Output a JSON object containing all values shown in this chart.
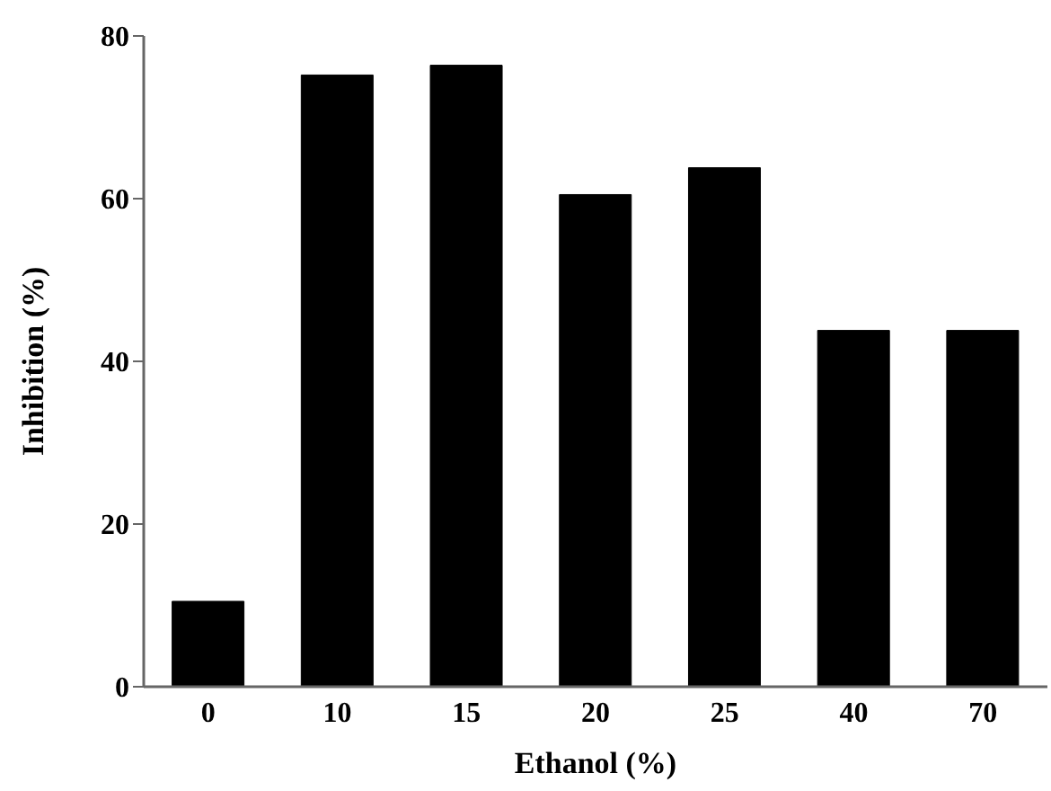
{
  "chart_data": {
    "type": "bar",
    "xlabel": "Ethanol (%)",
    "ylabel": "Inhibition (%)",
    "categories": [
      "0",
      "10",
      "15",
      "20",
      "25",
      "40",
      "70"
    ],
    "values": [
      10.5,
      75.2,
      76.4,
      60.5,
      63.8,
      43.8,
      43.8
    ],
    "color": "#000000",
    "ylim": [
      0,
      80
    ],
    "yticks": [
      0,
      20,
      40,
      60,
      80
    ],
    "grid": false,
    "legend": false
  }
}
